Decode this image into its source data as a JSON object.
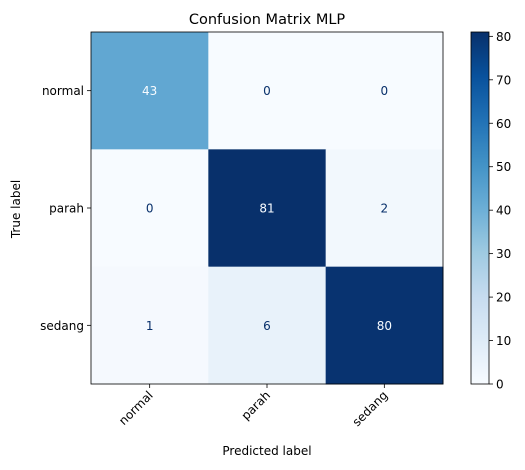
{
  "chart_data": {
    "type": "heatmap",
    "title": "Confusion Matrix MLP",
    "xlabel": "Predicted label",
    "ylabel": "True label",
    "x_categories": [
      "normal",
      "parah",
      "sedang"
    ],
    "y_categories": [
      "normal",
      "parah",
      "sedang"
    ],
    "values": [
      [
        43,
        0,
        0
      ],
      [
        0,
        81,
        2
      ],
      [
        1,
        6,
        80
      ]
    ],
    "colormap": "Blues",
    "colorbar": {
      "range": [
        0,
        81
      ],
      "ticks": [
        0,
        10,
        20,
        30,
        40,
        50,
        60,
        70,
        80
      ]
    },
    "grid": false,
    "colors": {
      "low": "#f7fbff",
      "high": "#08306b",
      "dark_text": "#08306b",
      "light_text": "#f7fbff"
    }
  }
}
